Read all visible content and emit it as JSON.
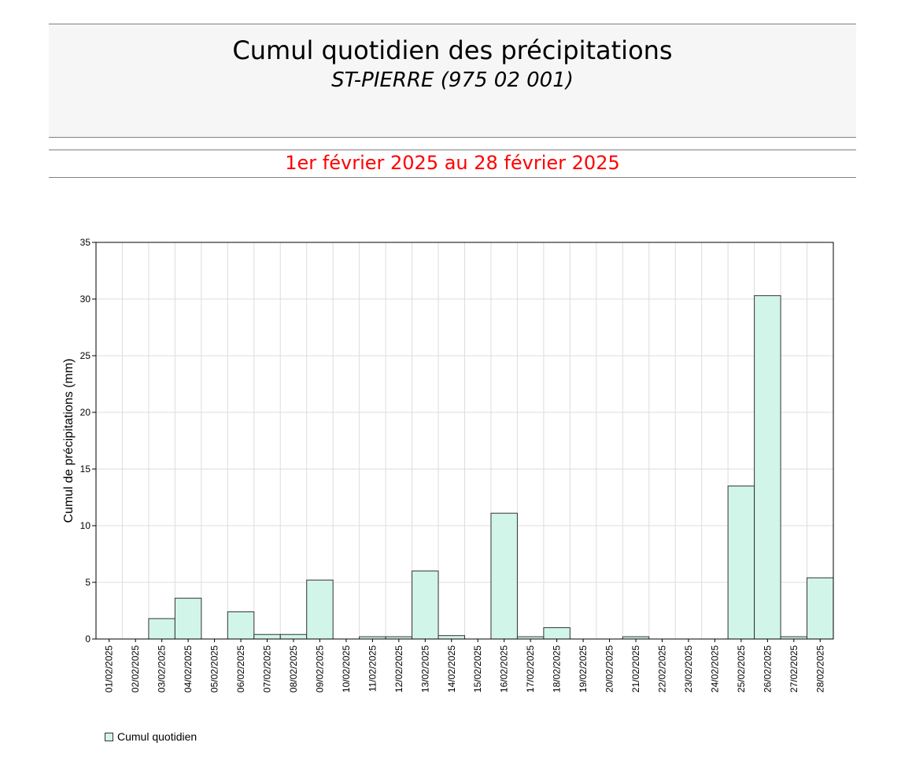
{
  "header": {
    "title": "Cumul quotidien des précipitations",
    "subtitle": "ST-PIERRE (975 02 001)",
    "period": "1er février 2025 au 28 février 2025"
  },
  "colors": {
    "bar_fill": "#d2f5e9",
    "bar_stroke": "#333333",
    "period_text": "#ff0000",
    "header_bg": "#f6f6f6",
    "grid": "#dddddd"
  },
  "chart_data": {
    "type": "bar",
    "ylabel": "Cumul de précipitations (mm)",
    "ylim": [
      0,
      35
    ],
    "yticks": [
      "0",
      "5",
      "10",
      "15",
      "20",
      "25",
      "30",
      "35"
    ],
    "grid": true,
    "legend_position": "bottom-left",
    "categories": [
      "01/02/2025",
      "02/02/2025",
      "03/02/2025",
      "04/02/2025",
      "05/02/2025",
      "06/02/2025",
      "07/02/2025",
      "08/02/2025",
      "09/02/2025",
      "10/02/2025",
      "11/02/2025",
      "12/02/2025",
      "13/02/2025",
      "14/02/2025",
      "15/02/2025",
      "16/02/2025",
      "17/02/2025",
      "18/02/2025",
      "19/02/2025",
      "20/02/2025",
      "21/02/2025",
      "22/02/2025",
      "23/02/2025",
      "24/02/2025",
      "25/02/2025",
      "26/02/2025",
      "27/02/2025",
      "28/02/2025"
    ],
    "series": [
      {
        "name": "Cumul quotidien",
        "values": [
          0,
          0,
          1.8,
          3.6,
          0,
          2.4,
          0.4,
          0.4,
          5.2,
          0,
          0.2,
          0.2,
          6.0,
          0.3,
          0,
          11.1,
          0.2,
          1.0,
          0,
          0,
          0.2,
          0,
          0,
          0,
          13.5,
          30.3,
          0.2,
          5.4
        ]
      }
    ]
  }
}
